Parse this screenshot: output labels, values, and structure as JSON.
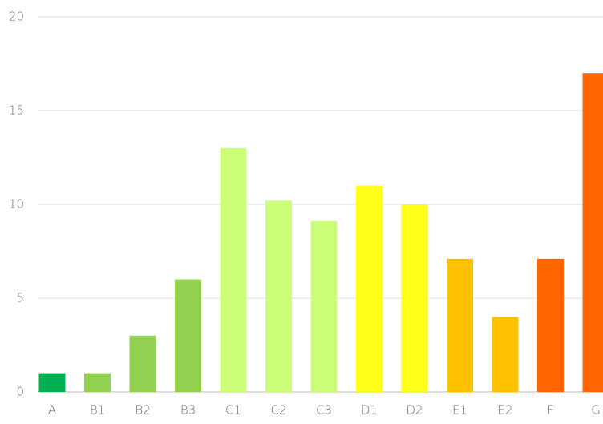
{
  "chart_data": {
    "type": "bar",
    "categories": [
      "A",
      "B1",
      "B2",
      "B3",
      "C1",
      "C2",
      "C3",
      "D1",
      "D2",
      "E1",
      "E2",
      "F",
      "G"
    ],
    "values": [
      1,
      1,
      3,
      6,
      13,
      10.2,
      9.1,
      11,
      10,
      7.1,
      4,
      7.1,
      17
    ],
    "colors": [
      "#00b050",
      "#92d050",
      "#92d050",
      "#92d050",
      "#ccff77",
      "#ccff77",
      "#ccff77",
      "#ffff1a",
      "#ffff1a",
      "#ffc000",
      "#ffc000",
      "#ff6600",
      "#ff6600"
    ],
    "ylim": [
      0,
      20
    ],
    "yticks": [
      0,
      5,
      10,
      15,
      20
    ],
    "grid": true
  }
}
